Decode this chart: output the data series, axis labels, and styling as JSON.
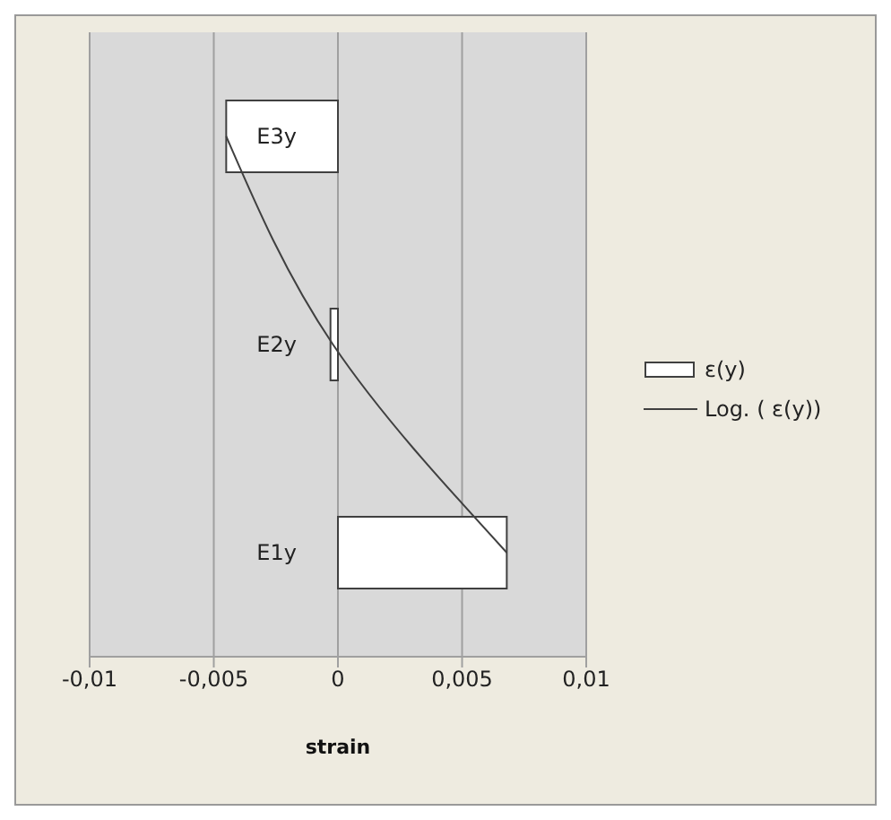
{
  "chart_data": {
    "type": "bar",
    "orientation": "horizontal",
    "xlabel": "strain",
    "categories": [
      "E3y",
      "E2y",
      "E1y"
    ],
    "series": [
      {
        "name": "ε(y)",
        "color": "#ffffff",
        "values": [
          -0.0045,
          -0.0003,
          0.0068
        ]
      },
      {
        "name": "Log. ( ε(y))",
        "type": "line",
        "color": "#404040",
        "values": [
          -0.0045,
          -0.0002,
          0.0068
        ]
      }
    ],
    "xlim": [
      -0.01,
      0.01
    ],
    "xticks": [
      {
        "value": -0.01,
        "label": "-0,01"
      },
      {
        "value": -0.005,
        "label": "-0,005"
      },
      {
        "value": 0,
        "label": "0"
      },
      {
        "value": 0.005,
        "label": "0,005"
      },
      {
        "value": 0.01,
        "label": "0,01"
      }
    ],
    "grid": "x",
    "legend": "right",
    "marker": "none"
  }
}
